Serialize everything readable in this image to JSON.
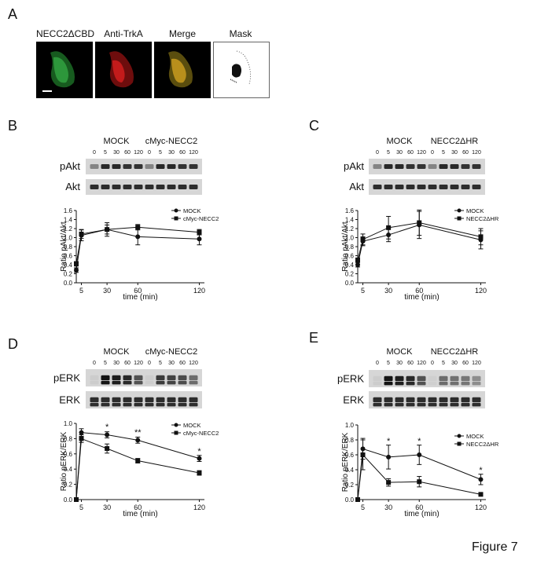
{
  "panel_a": {
    "letter": "A",
    "titles": [
      "NECC2ΔCBD",
      "Anti-TrkA",
      "Merge",
      "Mask"
    ]
  },
  "figure_label": "Figure 7",
  "chart_data": [
    {
      "id": "B",
      "type": "line",
      "blot_groups": [
        "MOCK",
        "cMyc-NECC2"
      ],
      "blot_times": [
        "0",
        "5",
        "30",
        "60",
        "120",
        "0",
        "5",
        "30",
        "60",
        "120"
      ],
      "blot_rows": [
        "pAkt",
        "Akt"
      ],
      "x": [
        0,
        5,
        30,
        60,
        120
      ],
      "series": [
        {
          "name": "MOCK",
          "marker": "circle",
          "values": [
            0.28,
            1.05,
            1.18,
            1.02,
            0.97
          ],
          "err": [
            0.05,
            0.12,
            0.15,
            0.18,
            0.13
          ]
        },
        {
          "name": "cMyc-NECC2",
          "marker": "square",
          "values": [
            0.42,
            1.08,
            1.18,
            1.23,
            1.12
          ],
          "err": [
            0.05,
            0.1,
            0.1,
            0.06,
            0.06
          ]
        }
      ],
      "xticks": [
        "5",
        "30",
        "60",
        "120"
      ],
      "yticks": [
        "0.0",
        "0.2",
        "0.4",
        "0.6",
        "0.8",
        "1.0",
        "1.2",
        "1.4",
        "1.6"
      ],
      "ylim": [
        0,
        1.6
      ],
      "xlabel": "time (min)",
      "ylabel": "Ratio pAkt/Akt",
      "stars": []
    },
    {
      "id": "C",
      "type": "line",
      "blot_groups": [
        "MOCK",
        "NECC2ΔHR"
      ],
      "blot_times": [
        "0",
        "5",
        "30",
        "60",
        "120",
        "0",
        "5",
        "30",
        "60",
        "120"
      ],
      "blot_rows": [
        "pAkt",
        "Akt"
      ],
      "x": [
        0,
        5,
        30,
        60,
        120
      ],
      "series": [
        {
          "name": "MOCK",
          "marker": "circle",
          "values": [
            0.4,
            0.92,
            1.06,
            1.28,
            0.95
          ],
          "err": [
            0.05,
            0.1,
            0.15,
            0.3,
            0.2
          ]
        },
        {
          "name": "NECC2ΔHR",
          "marker": "square",
          "values": [
            0.5,
            0.96,
            1.22,
            1.33,
            1.02
          ],
          "err": [
            0.05,
            0.12,
            0.25,
            0.28,
            0.18
          ]
        }
      ],
      "xticks": [
        "5",
        "30",
        "60",
        "120"
      ],
      "yticks": [
        "0.0",
        "0.2",
        "0.4",
        "0.6",
        "0.8",
        "1.0",
        "1.2",
        "1.4",
        "1.6"
      ],
      "ylim": [
        0,
        1.6
      ],
      "xlabel": "time (min)",
      "ylabel": "Ratio pAkt/Akt",
      "stars": []
    },
    {
      "id": "D",
      "type": "line",
      "blot_groups": [
        "MOCK",
        "cMyc-NECC2"
      ],
      "blot_times": [
        "0",
        "5",
        "30",
        "60",
        "120",
        "0",
        "5",
        "30",
        "60",
        "120"
      ],
      "blot_rows": [
        "pERK",
        "ERK"
      ],
      "x": [
        0,
        5,
        30,
        60,
        120
      ],
      "series": [
        {
          "name": "MOCK",
          "marker": "circle",
          "values": [
            0.0,
            0.88,
            0.85,
            0.78,
            0.54
          ],
          "err": [
            0.0,
            0.05,
            0.04,
            0.04,
            0.04
          ]
        },
        {
          "name": "cMyc-NECC2",
          "marker": "square",
          "values": [
            0.0,
            0.8,
            0.67,
            0.51,
            0.35
          ],
          "err": [
            0.0,
            0.05,
            0.06,
            0.03,
            0.03
          ]
        }
      ],
      "xticks": [
        "5",
        "30",
        "60",
        "120"
      ],
      "yticks": [
        "0.0",
        "0.2",
        "0.4",
        "0.6",
        "0.8",
        "1.0"
      ],
      "ylim": [
        0,
        1.0
      ],
      "xlabel": "time (min)",
      "ylabel": "Ratio pERK/ERK",
      "stars": [
        {
          "x": 30,
          "y": 0.915,
          "text": "*"
        },
        {
          "x": 60,
          "y": 0.845,
          "text": "**"
        },
        {
          "x": 120,
          "y": 0.6,
          "text": "*"
        }
      ]
    },
    {
      "id": "E",
      "type": "line",
      "blot_groups": [
        "MOCK",
        "NECC2ΔHR"
      ],
      "blot_times": [
        "0",
        "5",
        "30",
        "60",
        "120",
        "0",
        "5",
        "30",
        "60",
        "120"
      ],
      "blot_rows": [
        "pERK",
        "ERK"
      ],
      "x": [
        0,
        5,
        30,
        60,
        120
      ],
      "series": [
        {
          "name": "MOCK",
          "marker": "circle",
          "values": [
            0.0,
            0.68,
            0.57,
            0.6,
            0.27
          ],
          "err": [
            0.0,
            0.14,
            0.16,
            0.13,
            0.07
          ]
        },
        {
          "name": "NECC2ΔHR",
          "marker": "square",
          "values": [
            0.0,
            0.6,
            0.23,
            0.24,
            0.07
          ],
          "err": [
            0.0,
            0.2,
            0.05,
            0.07,
            0.0
          ]
        }
      ],
      "xticks": [
        "5",
        "30",
        "60",
        "120"
      ],
      "yticks": [
        "0.0",
        "0.2",
        "0.4",
        "0.6",
        "0.8",
        "1.0"
      ],
      "ylim": [
        0,
        1.0
      ],
      "xlabel": "time (min)",
      "ylabel": "Ratio pERK/ERK",
      "stars": [
        {
          "x": 30,
          "y": 0.75,
          "text": "*"
        },
        {
          "x": 60,
          "y": 0.75,
          "text": "*"
        },
        {
          "x": 120,
          "y": 0.36,
          "text": "*"
        }
      ]
    }
  ]
}
